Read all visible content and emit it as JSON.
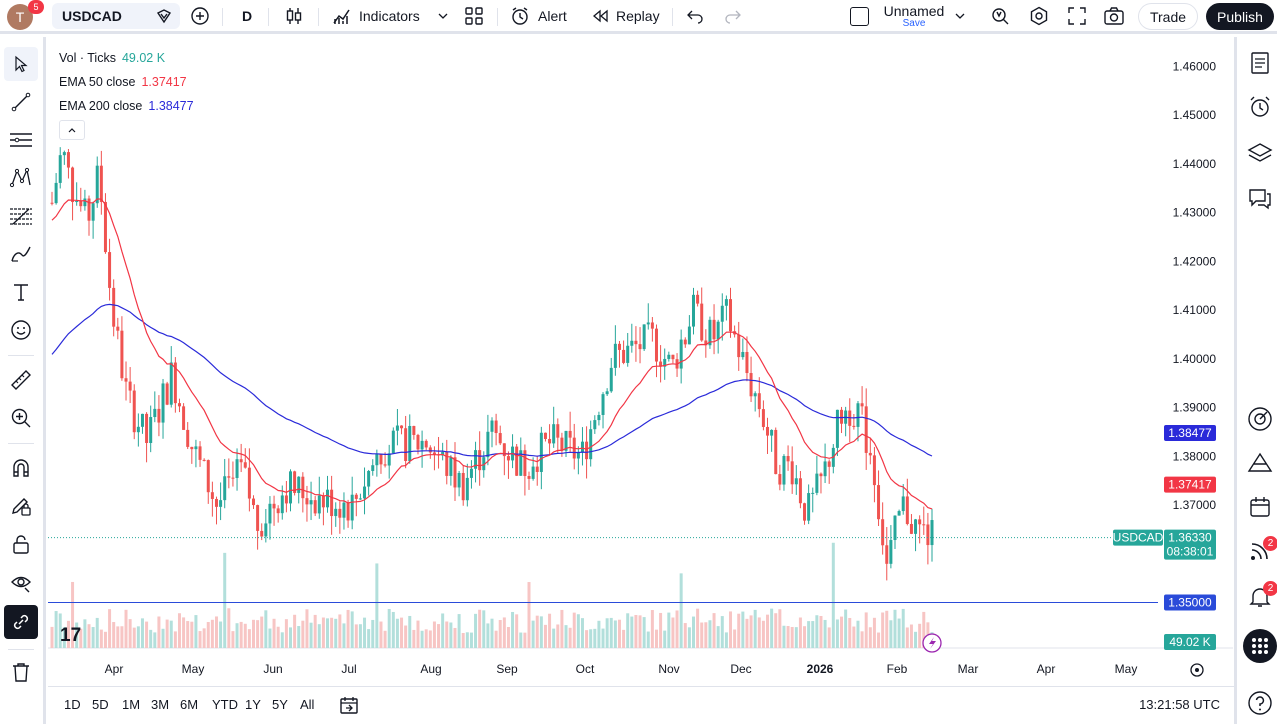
{
  "topbar": {
    "avatar_letter": "T",
    "avatar_badge": "5",
    "symbol": "USDCAD",
    "interval": "D",
    "indicators": "Indicators",
    "alert": "Alert",
    "replay": "Replay",
    "layout_name": "Unnamed",
    "layout_save": "Save",
    "trade": "Trade",
    "publish": "Publish"
  },
  "legend": {
    "vol_label": "Vol · Ticks",
    "vol_value": "49.02 K",
    "ema50_label": "EMA 50 close",
    "ema50_value": "1.37417",
    "ema200_label": "EMA 200 close",
    "ema200_value": "1.38477"
  },
  "colors": {
    "up": "#26a69a",
    "down": "#ef5350",
    "ema50": "#f23645",
    "ema200": "#2a2ad9",
    "accent": "#2962ff"
  },
  "axis": {
    "price_ticks": [
      "1.46000",
      "1.45000",
      "1.44000",
      "1.43000",
      "1.42000",
      "1.41000",
      "1.40000",
      "1.39000",
      "1.38000",
      "1.37000"
    ],
    "month_ticks": [
      "Apr",
      "May",
      "Jun",
      "Jul",
      "Aug",
      "Sep",
      "Oct",
      "Nov",
      "Dec",
      "2026",
      "Feb",
      "Mar",
      "Apr",
      "May"
    ]
  },
  "price_labels": {
    "ema200": "1.38477",
    "ema50": "1.37417",
    "symbol": "USDCAD",
    "last": "1.36330",
    "countdown": "08:38:01",
    "hline": "1.35000",
    "volume": "49.02 K"
  },
  "chart_data": {
    "type": "candlestick",
    "symbol": "USDCAD",
    "interval": "D",
    "y_range": [
      1.346,
      1.466
    ],
    "last_price": 1.3633,
    "horizontal_line": 1.35,
    "series": [
      {
        "name": "EMA 50 close",
        "last": 1.37417
      },
      {
        "name": "EMA 200 close",
        "last": 1.38477
      }
    ],
    "path_by_month": [
      {
        "month": "Apr",
        "close_approx": 1.405
      },
      {
        "month": "May",
        "close_approx": 1.385
      },
      {
        "month": "Jun",
        "close_approx": 1.37
      },
      {
        "month": "Jul",
        "close_approx": 1.365
      },
      {
        "month": "Aug",
        "close_approx": 1.385
      },
      {
        "month": "Sep",
        "close_approx": 1.38
      },
      {
        "month": "Oct",
        "close_approx": 1.405
      },
      {
        "month": "Nov",
        "close_approx": 1.41
      },
      {
        "month": "Dec",
        "close_approx": 1.375
      },
      {
        "month": "2026",
        "close_approx": 1.388
      },
      {
        "month": "Feb",
        "close_approx": 1.363
      }
    ],
    "volume_last": "49.02 K"
  },
  "bottom": {
    "ranges": [
      "1D",
      "5D",
      "1M",
      "3M",
      "6M",
      "YTD",
      "1Y",
      "5Y",
      "All"
    ],
    "clock": "13:21:58 UTC"
  },
  "right": {
    "badge_ideas": "2",
    "badge_alerts": "2"
  }
}
